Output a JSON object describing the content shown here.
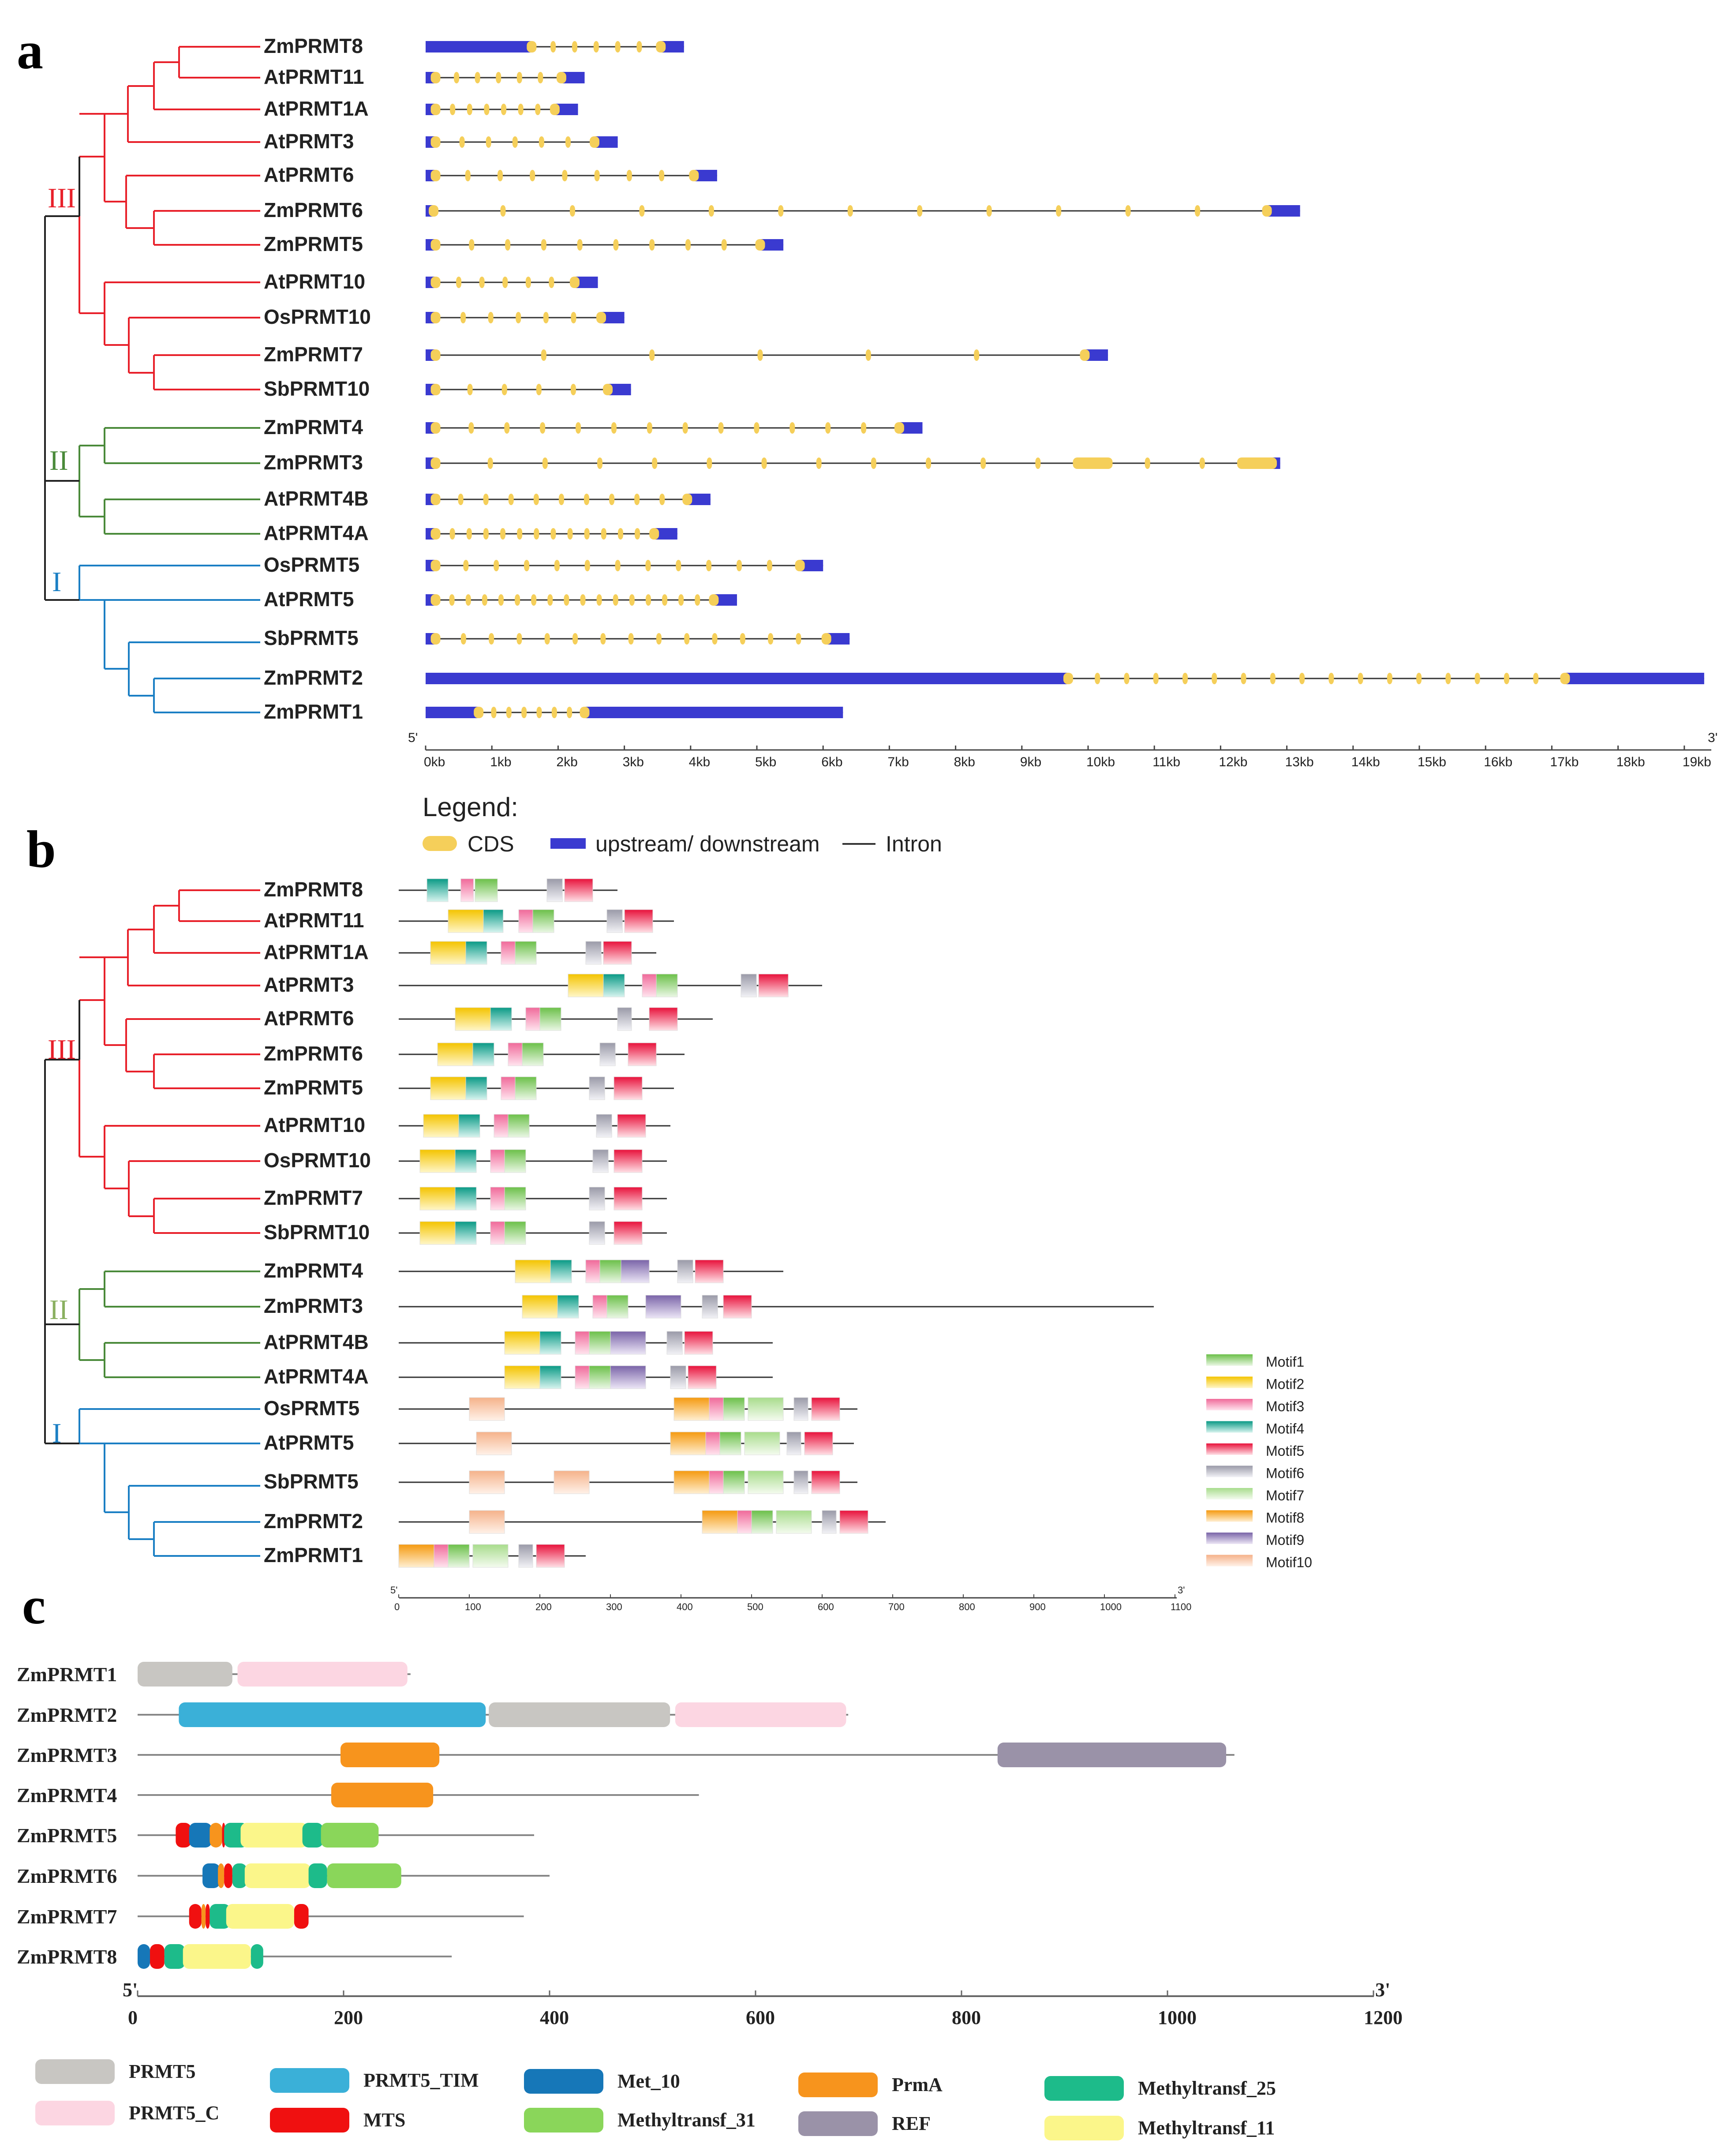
{
  "panel_a": {
    "label": "a",
    "genes": [
      "ZmPRMT8",
      "AtPRMT11",
      "AtPRMT1A",
      "AtPRMT3",
      "AtPRMT6",
      "ZmPRMT6",
      "ZmPRMT5",
      "AtPRMT10",
      "OsPRMT10",
      "ZmPRMT7",
      "SbPRMT10",
      "ZmPRMT4",
      "ZmPRMT3",
      "AtPRMT4B",
      "AtPRMT4A",
      "OsPRMT5",
      "AtPRMT5",
      "SbPRMT5",
      "ZmPRMT2",
      "ZmPRMT1"
    ],
    "gene_lengths_kb": [
      3.9,
      2.4,
      2.3,
      2.9,
      4.4,
      13.2,
      5.4,
      2.6,
      3.0,
      10.3,
      3.1,
      7.5,
      12.9,
      4.3,
      3.8,
      6.0,
      4.7,
      6.4,
      19.3,
      6.3
    ],
    "axis_end_5": "5'",
    "axis_end_3": "3'",
    "axis_ticks": [
      "0kb",
      "1kb",
      "2kb",
      "3kb",
      "4kb",
      "5kb",
      "6kb",
      "7kb",
      "8kb",
      "9kb",
      "10kb",
      "11kb",
      "12kb",
      "13kb",
      "14kb",
      "15kb",
      "16kb",
      "17kb",
      "18kb",
      "19kb"
    ],
    "legend_title": "Legend:",
    "legend_items": [
      "CDS",
      "upstream/ downstream",
      "Intron"
    ]
  },
  "panel_b": {
    "label": "b",
    "genes": [
      "ZmPRMT8",
      "AtPRMT11",
      "AtPRMT1A",
      "AtPRMT3",
      "AtPRMT6",
      "ZmPRMT6",
      "ZmPRMT5",
      "AtPRMT10",
      "OsPRMT10",
      "ZmPRMT7",
      "SbPRMT10",
      "ZmPRMT4",
      "ZmPRMT3",
      "AtPRMT4B",
      "AtPRMT4A",
      "OsPRMT5",
      "AtPRMT5",
      "SbPRMT5",
      "ZmPRMT2",
      "ZmPRMT1"
    ],
    "protein_lengths_aa": [
      310,
      390,
      365,
      600,
      445,
      405,
      390,
      385,
      380,
      380,
      380,
      545,
      1070,
      530,
      530,
      650,
      645,
      650,
      690,
      265
    ],
    "motifs": [
      "Motif1",
      "Motif2",
      "Motif3",
      "Motif4",
      "Motif5",
      "Motif6",
      "Motif7",
      "Motif8",
      "Motif9",
      "Motif10"
    ],
    "axis_end_5": "5'",
    "axis_end_3": "3'",
    "axis_ticks": [
      "0",
      "100",
      "200",
      "300",
      "400",
      "500",
      "600",
      "700",
      "800",
      "900",
      "1000",
      "1100"
    ]
  },
  "panel_c": {
    "label": "c",
    "genes": [
      "ZmPRMT1",
      "ZmPRMT2",
      "ZmPRMT3",
      "ZmPRMT4",
      "ZmPRMT5",
      "ZmPRMT6",
      "ZmPRMT7",
      "ZmPRMT8"
    ],
    "protein_lengths_aa": [
      265,
      690,
      1065,
      545,
      385,
      400,
      375,
      305
    ],
    "axis_end_5": "5'",
    "axis_end_3": "3'",
    "axis_ticks": [
      "0",
      "200",
      "400",
      "600",
      "800",
      "1000",
      "1200"
    ],
    "domains": [
      "PRMT5",
      "PRMT5_TIM",
      "Met_10",
      "PrmA",
      "Methyltransf_25",
      "PRMT5_C",
      "MTS",
      "Methyltransf_31",
      "REF",
      "Methyltransf_11"
    ]
  },
  "tree_groups": [
    "III",
    "II",
    "I"
  ],
  "colors": {
    "group_III": "#e8202a",
    "group_II": "#4a8a3a",
    "group_I": "#1b7fc4",
    "cds": "#f5cf5a",
    "utr": "#3a3ad0"
  }
}
